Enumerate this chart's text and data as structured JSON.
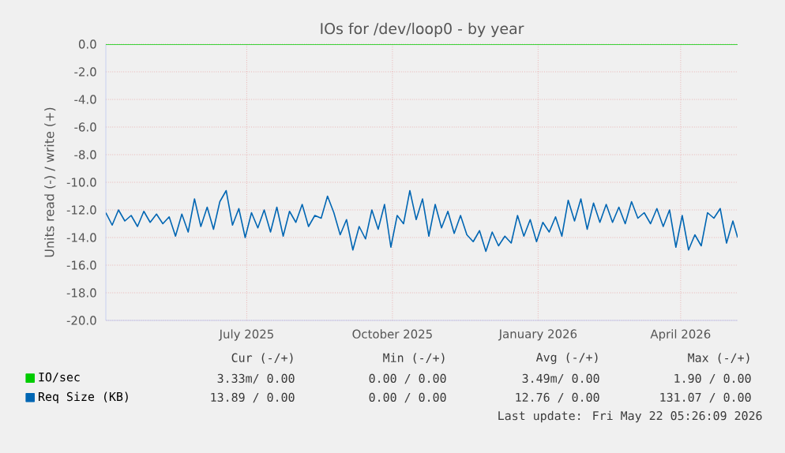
{
  "chart_data": {
    "type": "line",
    "title": "IOs for /dev/loop0 - by year",
    "ylabel": "Units read (-) / write (+)",
    "xlim": [
      "2025-04-18",
      "2026-05-22"
    ],
    "xticks": [
      {
        "value": "2025-07-16",
        "label": "July 2025"
      },
      {
        "value": "2025-10-16",
        "label": "October 2025"
      },
      {
        "value": "2026-01-16",
        "label": "January 2026"
      },
      {
        "value": "2026-04-16",
        "label": "April 2026"
      }
    ],
    "ylim": [
      -20,
      0
    ],
    "yticks": [
      {
        "value": 0,
        "label": "0.0"
      },
      {
        "value": -2,
        "label": "-2.0"
      },
      {
        "value": -4,
        "label": "-4.0"
      },
      {
        "value": -6,
        "label": "-6.0"
      },
      {
        "value": -8,
        "label": "-8.0"
      },
      {
        "value": -10,
        "label": "-10.0"
      },
      {
        "value": -12,
        "label": "-12.0"
      },
      {
        "value": -14,
        "label": "-14.0"
      },
      {
        "value": -16,
        "label": "-16.0"
      },
      {
        "value": -18,
        "label": "-18.0"
      },
      {
        "value": -20,
        "label": "-20.0"
      }
    ],
    "grid": true,
    "legend": "bottom",
    "line_style": "solid",
    "series": [
      {
        "name": "IO/sec",
        "color": "#00cc00",
        "x": [
          "2025-04-18",
          "2026-05-22"
        ],
        "values": [
          0,
          0
        ]
      },
      {
        "name": "Req Size (KB)",
        "color": "#0066b3",
        "x": [
          "2025-04-18",
          "2025-04-22",
          "2025-04-26",
          "2025-04-30",
          "2025-05-04",
          "2025-05-08",
          "2025-05-12",
          "2025-05-16",
          "2025-05-20",
          "2025-05-24",
          "2025-05-28",
          "2025-06-01",
          "2025-06-05",
          "2025-06-09",
          "2025-06-13",
          "2025-06-17",
          "2025-06-21",
          "2025-06-25",
          "2025-06-29",
          "2025-07-03",
          "2025-07-07",
          "2025-07-11",
          "2025-07-15",
          "2025-07-19",
          "2025-07-23",
          "2025-07-27",
          "2025-07-31",
          "2025-08-04",
          "2025-08-08",
          "2025-08-12",
          "2025-08-16",
          "2025-08-20",
          "2025-08-24",
          "2025-08-28",
          "2025-09-01",
          "2025-09-05",
          "2025-09-09",
          "2025-09-13",
          "2025-09-17",
          "2025-09-21",
          "2025-09-25",
          "2025-09-29",
          "2025-10-03",
          "2025-10-07",
          "2025-10-11",
          "2025-10-15",
          "2025-10-19",
          "2025-10-23",
          "2025-10-27",
          "2025-10-31",
          "2025-11-04",
          "2025-11-08",
          "2025-11-12",
          "2025-11-16",
          "2025-11-20",
          "2025-11-24",
          "2025-11-28",
          "2025-12-02",
          "2025-12-06",
          "2025-12-10",
          "2025-12-14",
          "2025-12-18",
          "2025-12-22",
          "2025-12-26",
          "2025-12-30",
          "2026-01-03",
          "2026-01-07",
          "2026-01-11",
          "2026-01-15",
          "2026-01-19",
          "2026-01-23",
          "2026-01-27",
          "2026-01-31",
          "2026-02-04",
          "2026-02-08",
          "2026-02-12",
          "2026-02-16",
          "2026-02-20",
          "2026-02-24",
          "2026-02-28",
          "2026-03-04",
          "2026-03-08",
          "2026-03-12",
          "2026-03-16",
          "2026-03-20",
          "2026-03-24",
          "2026-03-28",
          "2026-04-01",
          "2026-04-05",
          "2026-04-09",
          "2026-04-13",
          "2026-04-17",
          "2026-04-21",
          "2026-04-25",
          "2026-04-29",
          "2026-05-03",
          "2026-05-07",
          "2026-05-11",
          "2026-05-15",
          "2026-05-19",
          "2026-05-22"
        ],
        "values": [
          -12.2,
          -13.1,
          -12.0,
          -12.8,
          -12.4,
          -13.2,
          -12.1,
          -12.9,
          -12.3,
          -13.0,
          -12.5,
          -13.9,
          -12.3,
          -13.6,
          -11.2,
          -13.2,
          -11.8,
          -13.4,
          -11.4,
          -10.6,
          -13.1,
          -11.9,
          -14.0,
          -12.2,
          -13.3,
          -12.0,
          -13.6,
          -11.8,
          -13.9,
          -12.1,
          -12.9,
          -11.6,
          -13.2,
          -12.4,
          -12.6,
          -11.0,
          -12.2,
          -13.8,
          -12.7,
          -14.9,
          -13.2,
          -14.1,
          -12.0,
          -13.4,
          -11.6,
          -14.7,
          -12.4,
          -13.0,
          -10.6,
          -12.7,
          -11.2,
          -13.9,
          -11.6,
          -13.3,
          -12.1,
          -13.7,
          -12.4,
          -13.8,
          -14.3,
          -13.5,
          -15.0,
          -13.6,
          -14.6,
          -13.9,
          -14.4,
          -12.4,
          -13.9,
          -12.7,
          -14.3,
          -12.9,
          -13.6,
          -12.5,
          -13.9,
          -11.3,
          -12.8,
          -11.2,
          -13.4,
          -11.5,
          -12.9,
          -11.6,
          -12.9,
          -11.8,
          -13.0,
          -11.4,
          -12.6,
          -12.2,
          -13.0,
          -11.9,
          -13.2,
          -12.0,
          -14.7,
          -12.4,
          -14.9,
          -13.8,
          -14.6,
          -12.2,
          -12.6,
          -11.9,
          -14.4,
          -12.8,
          -14.0
        ]
      }
    ],
    "annotations": [
      "Cur (-/+)",
      "Min (-/+)",
      "Avg (-/+)",
      "Max (-/+)",
      "3.33m/ 0.00",
      "0.00 / 0.00",
      "3.49m/ 0.00",
      "1.90 / 0.00",
      "13.89 / 0.00",
      "0.00 / 0.00",
      "12.76 / 0.00",
      "131.07 / 0.00",
      "Last update: Fri May 22 05:26:09 2026"
    ]
  }
}
